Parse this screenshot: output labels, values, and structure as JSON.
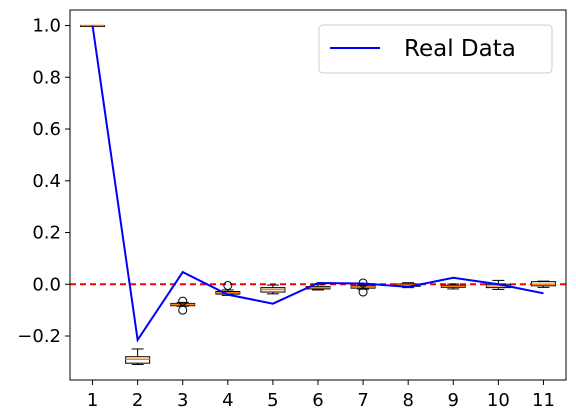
{
  "chart_data": {
    "type": "box",
    "x_ticks": [
      "1",
      "2",
      "3",
      "4",
      "5",
      "6",
      "7",
      "8",
      "9",
      "10",
      "11"
    ],
    "y_ticks": [
      "−0.2",
      "0.0",
      "0.2",
      "0.4",
      "0.6",
      "0.8",
      "1.0"
    ],
    "y_tick_values": [
      -0.2,
      0.0,
      0.2,
      0.4,
      0.6,
      0.8,
      1.0
    ],
    "ylim": [
      -0.37,
      1.06
    ],
    "xlim": [
      0.5,
      11.5
    ],
    "grid": false,
    "legend": {
      "placement": "upper right",
      "entries": [
        "Real Data"
      ]
    },
    "reference_line": {
      "y": 0.0,
      "style": "dashed",
      "color": "#ff0000"
    },
    "line_series": {
      "name": "Real Data",
      "color": "#0000ff",
      "x": [
        1,
        2,
        3,
        4,
        5,
        6,
        7,
        8,
        9,
        10,
        11
      ],
      "y": [
        1.0,
        -0.215,
        0.047,
        -0.04,
        -0.075,
        0.005,
        0.003,
        -0.01,
        0.025,
        0.0,
        -0.035
      ]
    },
    "boxes": [
      {
        "x": 1,
        "whislo": 0.998,
        "q1": 0.999,
        "med": 1.0,
        "q3": 1.0,
        "whishi": 1.0,
        "fliers": []
      },
      {
        "x": 2,
        "whislo": -0.31,
        "q1": -0.305,
        "med": -0.29,
        "q3": -0.28,
        "whishi": -0.25,
        "fliers": []
      },
      {
        "x": 3,
        "whislo": -0.085,
        "q1": -0.083,
        "med": -0.078,
        "q3": -0.074,
        "whishi": -0.07,
        "fliers": [
          -0.1,
          -0.065
        ]
      },
      {
        "x": 4,
        "whislo": -0.043,
        "q1": -0.038,
        "med": -0.033,
        "q3": -0.028,
        "whishi": -0.022,
        "fliers": [
          -0.005
        ]
      },
      {
        "x": 5,
        "whislo": -0.037,
        "q1": -0.03,
        "med": -0.02,
        "q3": -0.013,
        "whishi": -0.003,
        "fliers": []
      },
      {
        "x": 6,
        "whislo": -0.022,
        "q1": -0.018,
        "med": -0.013,
        "q3": -0.009,
        "whishi": -0.002,
        "fliers": []
      },
      {
        "x": 7,
        "whislo": -0.019,
        "q1": -0.015,
        "med": -0.01,
        "q3": -0.006,
        "whishi": -0.002,
        "fliers": [
          0.005,
          -0.03
        ]
      },
      {
        "x": 8,
        "whislo": -0.013,
        "q1": -0.008,
        "med": -0.003,
        "q3": 0.001,
        "whishi": 0.006,
        "fliers": []
      },
      {
        "x": 9,
        "whislo": -0.018,
        "q1": -0.012,
        "med": -0.008,
        "q3": -0.004,
        "whishi": 0.001,
        "fliers": []
      },
      {
        "x": 10,
        "whislo": -0.02,
        "q1": -0.013,
        "med": -0.006,
        "q3": 0.0,
        "whishi": 0.015,
        "fliers": []
      },
      {
        "x": 11,
        "whislo": -0.012,
        "q1": -0.006,
        "med": 0.0,
        "q3": 0.01,
        "whishi": 0.012,
        "fliers": []
      }
    ]
  }
}
